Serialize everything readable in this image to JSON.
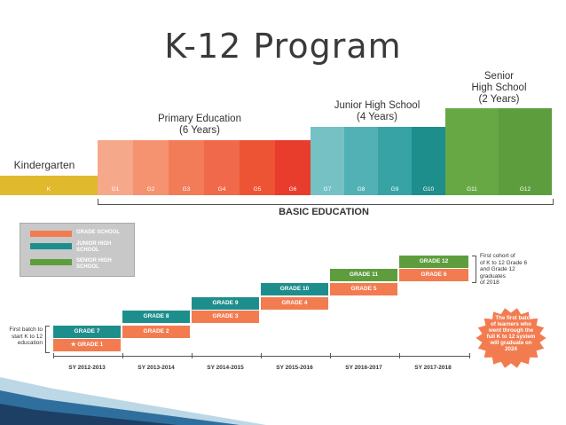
{
  "title": "K-12 Program",
  "headers": {
    "kindergarten": "Kindergarten",
    "primary": [
      "Primary Education",
      "(6 Years)"
    ],
    "junior": [
      "Junior High School",
      "(4 Years)"
    ],
    "senior": [
      "Senior",
      "High School",
      "(2 Years)"
    ]
  },
  "grade_labels": [
    "K",
    "G1",
    "G2",
    "G3",
    "G4",
    "G5",
    "G6",
    "G7",
    "G8",
    "G9",
    "G10",
    "G11",
    "G12"
  ],
  "basic_education": "BASIC EDUCATION",
  "legend": {
    "grade_school": "GRADE SCHOOL",
    "junior_1": "JUNIOR HIGH",
    "junior_2": "SCHOOL",
    "senior_1": "SENIOR HIGH",
    "senior_2": "SCHOOL"
  },
  "steps": {
    "s1_top": "GRADE 7",
    "s1_bottom": "★ GRADE 1",
    "s2_top": "GRADE 8",
    "s2_bottom": "GRADE 2",
    "s3_top": "GRADE 9",
    "s3_bottom": "GRADE 3",
    "s4_top": "GRADE 10",
    "s4_bottom": "GRADE 4",
    "s5_top": "GRADE 11",
    "s5_bottom": "GRADE 5",
    "s6_top": "GRADE 12",
    "s6_bottom": "GRADE 6"
  },
  "school_years": [
    "SY 2012-2013",
    "SY 2013-2014",
    "SY 2014-2015",
    "SY 2015-2016",
    "SY 2016-2017",
    "SY 2017-2018"
  ],
  "notes": {
    "first_batch": [
      "First batch to",
      "start K to 12",
      "education"
    ],
    "first_cohort": [
      "First cohort of",
      "of K to 12 Grade 6",
      "and Grade 12",
      "graduates",
      "of 2018"
    ],
    "star": [
      "★ The first batch",
      "of learners who",
      "went through the",
      "full K to 12 system",
      "will graduate on",
      "2024"
    ]
  },
  "colors": {
    "kinder": "#e1b92d",
    "primary": [
      "#f6a88b",
      "#f59270",
      "#f27c58",
      "#f0694a",
      "#ed5434",
      "#e83c2d"
    ],
    "junior": [
      "#76c1c4",
      "#52b1b4",
      "#37a3a5",
      "#1e8e8d"
    ],
    "senior": [
      "#67a845",
      "#5e9d3d"
    ],
    "grade_school": "#f27c50",
    "junior_high": "#1e8e8d",
    "senior_high": "#5e9d3d"
  }
}
